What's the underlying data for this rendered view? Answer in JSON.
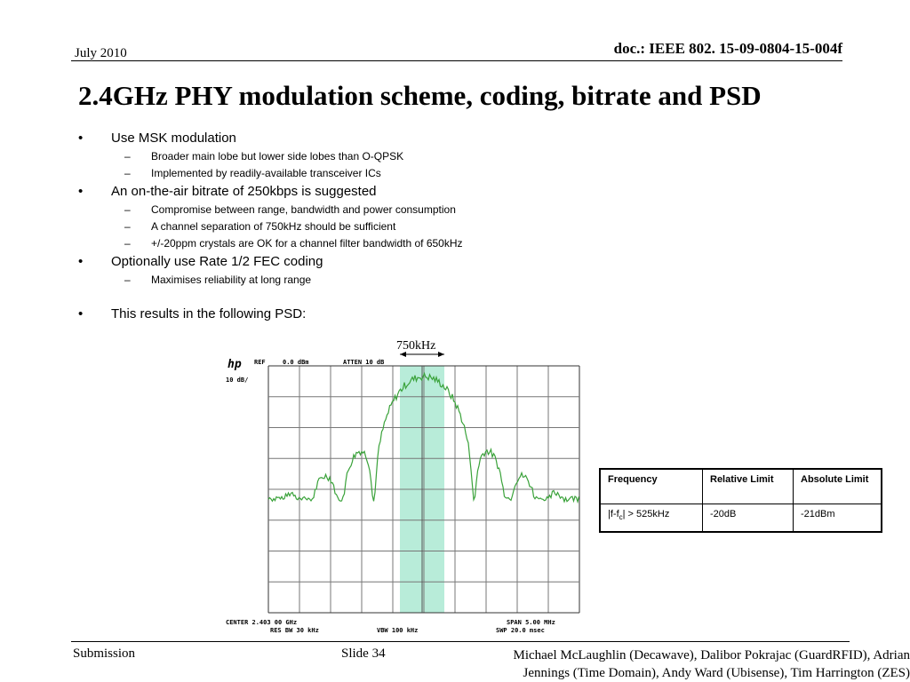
{
  "header": {
    "date": "July 2010",
    "doc_id": "doc.: IEEE 802. 15-09-0804-15-004f"
  },
  "title": "2.4GHz PHY modulation scheme, coding, bitrate and PSD",
  "bullets": [
    {
      "text": "Use MSK modulation",
      "sub": [
        "Broader main lobe but lower side lobes than O-QPSK",
        "Implemented by readily-available transceiver ICs"
      ]
    },
    {
      "text": "An on-the-air bitrate of 250kbps is suggested",
      "sub": [
        "Compromise between range, bandwidth and power consumption",
        "A channel separation of 750kHz should be sufficient",
        "+/-20ppm crystals are OK for a channel filter bandwidth of 650kHz"
      ]
    },
    {
      "text": "Optionally use Rate 1/2 FEC coding",
      "sub": [
        "Maximises reliability at long range"
      ]
    },
    {
      "text": "This results in the following PSD:",
      "sub": []
    }
  ],
  "bullet_glyph": "•",
  "sub_glyph": "–",
  "psd_plot": {
    "bandwidth_label": "750kHz",
    "ref": "REF",
    "ref_value": "0.0 dBm",
    "atten": "ATTEN 10 dB",
    "scale": "10 dB/",
    "center": "CENTER 2.403 00 GHz",
    "span": "SPAN 5.00 MHz",
    "res_bw": "RES BW 30 kHz",
    "vbw": "VBW 100 kHz",
    "swp": "SWP 20.0 msec",
    "trace_color": "#3aa23a",
    "band_color": "#b8ecd9"
  },
  "limits_table": {
    "headers": [
      "Frequency",
      "Relative Limit",
      "Absolute Limit"
    ],
    "rows": [
      {
        "frequency_prefix": "|f-f",
        "frequency_sub": "c",
        "frequency_suffix": "| > 525kHz",
        "relative": "-20dB",
        "absolute": "-21dBm"
      }
    ]
  },
  "footer": {
    "left": "Submission",
    "slide": "Slide 34",
    "authors_line1": "Michael McLaughlin (Decawave), Dalibor Pokrajac (GuardRFID), Adrian",
    "authors_line2": "Jennings (Time Domain), Andy Ward (Ubisense), Tim Harrington (ZES)"
  }
}
